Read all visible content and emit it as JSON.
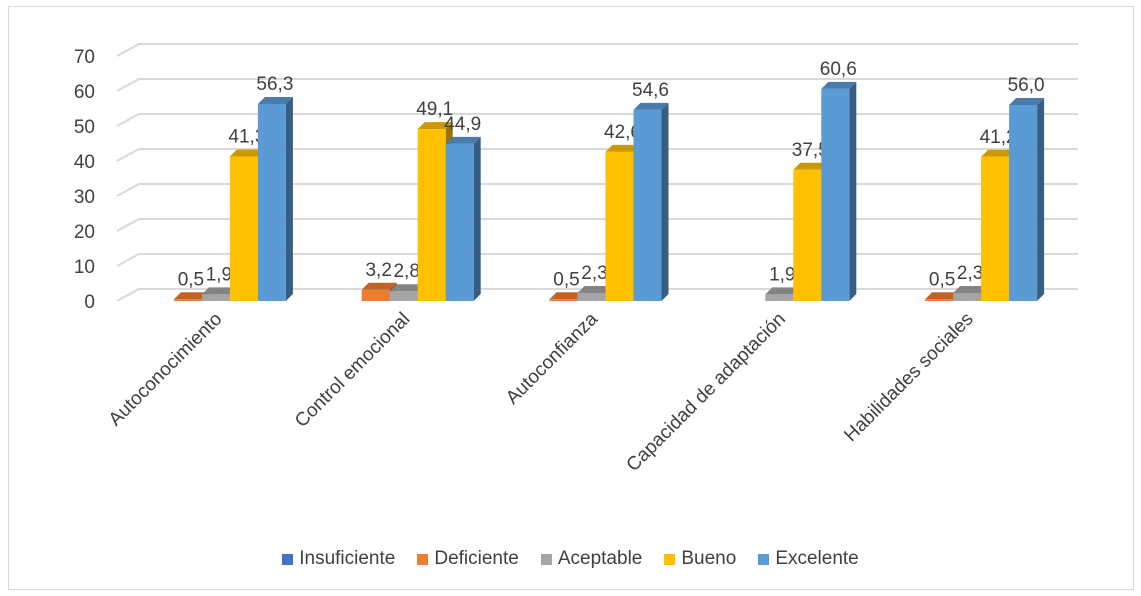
{
  "chart_data": {
    "type": "bar",
    "categories": [
      "Autoconocimiento",
      "Control emocional",
      "Autoconfianza",
      "Capacidad de adaptación",
      "Habilidades sociales"
    ],
    "series": [
      {
        "name": "Insuficiente",
        "color": "#4472c4",
        "values": [
          null,
          null,
          null,
          null,
          null
        ],
        "labels": [
          "",
          "",
          "",
          "",
          ""
        ]
      },
      {
        "name": "Deficiente",
        "color": "#ed7d31",
        "values": [
          0.5,
          3.2,
          0.5,
          null,
          0.5
        ],
        "labels": [
          "0,5",
          "3,2",
          "0,5",
          "",
          "0,5"
        ]
      },
      {
        "name": "Aceptable",
        "color": "#a5a5a5",
        "values": [
          1.9,
          2.8,
          2.3,
          1.9,
          2.3
        ],
        "labels": [
          "1,9",
          "2,8",
          "2,3",
          "1,9",
          "2,3"
        ]
      },
      {
        "name": "Bueno",
        "color": "#ffc000",
        "values": [
          41.3,
          49.1,
          42.6,
          37.5,
          41.2
        ],
        "labels": [
          "41,3",
          "49,1",
          "42,6",
          "37,5",
          "41,2"
        ]
      },
      {
        "name": "Excelente",
        "color": "#5b9bd5",
        "values": [
          56.3,
          44.9,
          54.6,
          60.6,
          56.0
        ],
        "labels": [
          "56,3",
          "44,9",
          "54,6",
          "60,6",
          "56,0"
        ]
      }
    ],
    "yticks": [
      "0",
      "10",
      "20",
      "30",
      "40",
      "50",
      "60",
      "70"
    ],
    "ylim": [
      0,
      70
    ],
    "grid": true,
    "legend_position": "bottom",
    "title": "",
    "xlabel": "",
    "ylabel": ""
  }
}
